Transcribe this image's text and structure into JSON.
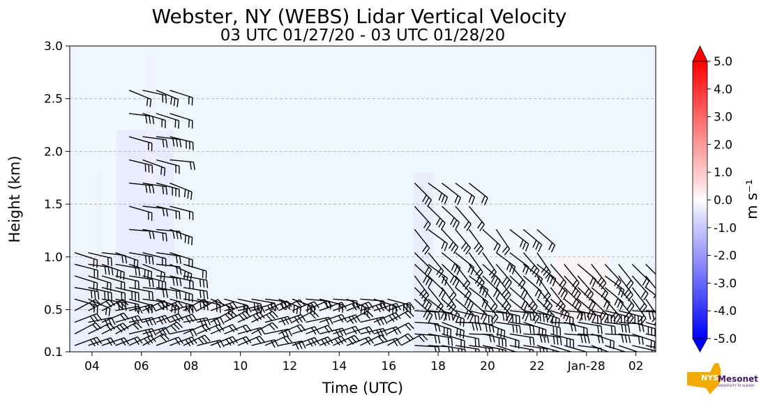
{
  "chart_data": {
    "type": "heatmap",
    "title": "Webster, NY (WEBS) Lidar Vertical Velocity",
    "subtitle": "03 UTC 01/27/20 - 03 UTC 01/28/20",
    "xlabel": "Time (UTC)",
    "ylabel": "Height (km)",
    "x_tick_labels": [
      "04",
      "06",
      "08",
      "10",
      "12",
      "14",
      "16",
      "18",
      "20",
      "22",
      "Jan-28",
      "02"
    ],
    "x_ticks_hours": [
      4,
      6,
      8,
      10,
      12,
      14,
      16,
      18,
      20,
      22,
      24,
      26
    ],
    "xlim_hours": [
      3.1,
      26.8
    ],
    "ylim": [
      0.1,
      3.0
    ],
    "y_ticks": [
      0.1,
      0.5,
      1.0,
      1.5,
      2.0,
      2.5,
      3.0
    ],
    "y_tick_labels": [
      "0.1",
      "0.5",
      "1.0",
      "1.5",
      "2.0",
      "2.5",
      "3.0"
    ],
    "grid": "horizontal dashed",
    "colorbar": {
      "label": "m s⁻¹",
      "range": [
        -5.0,
        5.0
      ],
      "tick_values": [
        5,
        4,
        3,
        2,
        1,
        0,
        -1,
        -2,
        -3,
        -4,
        -5
      ],
      "tick_labels": [
        "5.0",
        "4.0",
        "3.0",
        "2.0",
        "1.0",
        "0.0",
        "-1.0",
        "-2.0",
        "-3.0",
        "-4.0",
        "-5.0"
      ],
      "extend": "both",
      "colors": {
        "min": "#0000ff",
        "mid": "#ffffff",
        "max": "#ff0000"
      }
    },
    "background_color": "#eef6ff",
    "data_regions": [
      {
        "t0": 3.1,
        "t1": 8.0,
        "h0": 0.1,
        "h1": 1.0,
        "value": -0.6
      },
      {
        "t0": 4.2,
        "t1": 4.4,
        "h0": 0.8,
        "h1": 1.8,
        "value": -0.5
      },
      {
        "t0": 5.0,
        "t1": 7.3,
        "h0": 0.9,
        "h1": 2.2,
        "value": -0.8
      },
      {
        "t0": 6.2,
        "t1": 6.6,
        "h0": 1.6,
        "h1": 2.9,
        "value": -0.5
      },
      {
        "t0": 8.0,
        "t1": 16.5,
        "h0": 0.1,
        "h1": 0.6,
        "value": -0.3
      },
      {
        "t0": 17.0,
        "t1": 17.8,
        "h0": 0.1,
        "h1": 1.8,
        "value": -0.7
      },
      {
        "t0": 17.8,
        "t1": 19.5,
        "h0": 0.1,
        "h1": 1.7,
        "value": -0.4
      },
      {
        "t0": 19.5,
        "t1": 22.5,
        "h0": 0.1,
        "h1": 1.3,
        "value": -0.3
      },
      {
        "t0": 22.7,
        "t1": 25.0,
        "h0": 0.4,
        "h1": 1.0,
        "value": 0.4
      },
      {
        "t0": 25.0,
        "t1": 26.8,
        "h0": 0.1,
        "h1": 0.8,
        "value": -0.2
      }
    ],
    "wind_barbs": "black wind barbs overlaid across the field (not individually labeled)"
  },
  "logo": {
    "text": "NYS Mesonet",
    "subtext": "UNIVERSITY AT ALBANY",
    "colors": {
      "state": "#f2a900",
      "text": "#46166b"
    }
  }
}
